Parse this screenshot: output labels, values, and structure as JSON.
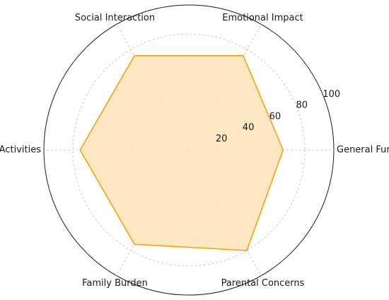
{
  "chart_data": {
    "type": "radar",
    "title": "",
    "categories": [
      "General Functioning",
      "Emotional Impact",
      "Social Interaction",
      "Daily Activities",
      "Family Burden",
      "Parental Concerns"
    ],
    "values": [
      65,
      75,
      75,
      75,
      75,
      80
    ],
    "rlim": [
      0,
      100
    ],
    "ticks": [
      20,
      40,
      60,
      80,
      100
    ],
    "grid": true,
    "colors": {
      "line": "#f5a30a",
      "fill": "#fde4b8",
      "grid": "#bdbdbd",
      "outline": "#1a1a1a"
    }
  }
}
